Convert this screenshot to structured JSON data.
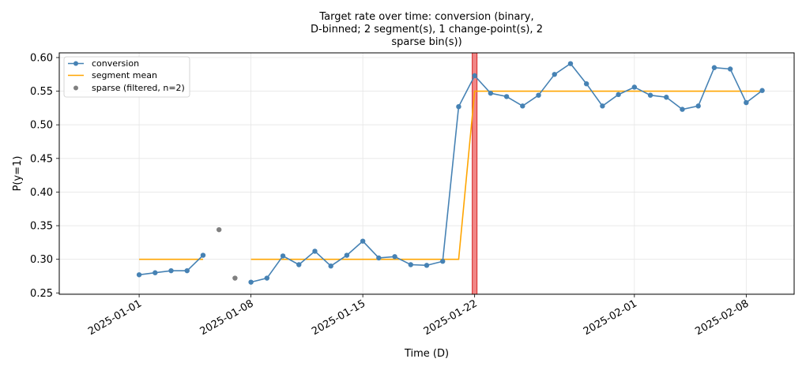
{
  "chart_data": {
    "type": "line",
    "title_lines": [
      "Target rate over time: conversion (binary,",
      "D-binned; 2 segment(s), 1 change-point(s), 2",
      "sparse bin(s))"
    ],
    "xlabel": "Time (D)",
    "ylabel": "P(y=1)",
    "ylim": [
      0.248,
      0.607
    ],
    "xlim": [
      "2024-12-27",
      "2025-02-11"
    ],
    "x_ticks": [
      "2025-01-01",
      "2025-01-08",
      "2025-01-15",
      "2025-01-22",
      "2025-02-01",
      "2025-02-08"
    ],
    "y_ticks": [
      "0.25",
      "0.30",
      "0.35",
      "0.40",
      "0.45",
      "0.50",
      "0.55",
      "0.60"
    ],
    "grid": true,
    "legend_position": "top-left",
    "legend": [
      "conversion",
      "segment mean",
      "sparse (filtered, n=2)"
    ],
    "colors": {
      "conversion": "#4682b4",
      "segment_mean": "#ffa500",
      "sparse": "#808080",
      "change_point": "#f08080"
    },
    "series": [
      {
        "name": "conversion",
        "segments": [
          [
            {
              "x": "2025-01-01",
              "y": 0.277
            },
            {
              "x": "2025-01-02",
              "y": 0.28
            },
            {
              "x": "2025-01-03",
              "y": 0.283
            },
            {
              "x": "2025-01-04",
              "y": 0.283
            },
            {
              "x": "2025-01-05",
              "y": 0.306
            }
          ],
          [
            {
              "x": "2025-01-08",
              "y": 0.266
            },
            {
              "x": "2025-01-09",
              "y": 0.272
            },
            {
              "x": "2025-01-10",
              "y": 0.305
            },
            {
              "x": "2025-01-11",
              "y": 0.292
            },
            {
              "x": "2025-01-12",
              "y": 0.312
            },
            {
              "x": "2025-01-13",
              "y": 0.29
            },
            {
              "x": "2025-01-14",
              "y": 0.306
            },
            {
              "x": "2025-01-15",
              "y": 0.327
            },
            {
              "x": "2025-01-16",
              "y": 0.302
            },
            {
              "x": "2025-01-17",
              "y": 0.304
            },
            {
              "x": "2025-01-18",
              "y": 0.292
            },
            {
              "x": "2025-01-19",
              "y": 0.291
            },
            {
              "x": "2025-01-20",
              "y": 0.297
            },
            {
              "x": "2025-01-21",
              "y": 0.527
            },
            {
              "x": "2025-01-22",
              "y": 0.573
            },
            {
              "x": "2025-01-23",
              "y": 0.547
            },
            {
              "x": "2025-01-24",
              "y": 0.542
            },
            {
              "x": "2025-01-25",
              "y": 0.528
            },
            {
              "x": "2025-01-26",
              "y": 0.544
            },
            {
              "x": "2025-01-27",
              "y": 0.575
            },
            {
              "x": "2025-01-28",
              "y": 0.591
            },
            {
              "x": "2025-01-29",
              "y": 0.561
            },
            {
              "x": "2025-01-30",
              "y": 0.528
            },
            {
              "x": "2025-01-31",
              "y": 0.545
            },
            {
              "x": "2025-02-01",
              "y": 0.556
            },
            {
              "x": "2025-02-02",
              "y": 0.544
            },
            {
              "x": "2025-02-03",
              "y": 0.541
            },
            {
              "x": "2025-02-04",
              "y": 0.523
            },
            {
              "x": "2025-02-05",
              "y": 0.528
            },
            {
              "x": "2025-02-06",
              "y": 0.585
            },
            {
              "x": "2025-02-07",
              "y": 0.583
            },
            {
              "x": "2025-02-08",
              "y": 0.533
            },
            {
              "x": "2025-02-09",
              "y": 0.551
            }
          ]
        ]
      },
      {
        "name": "segment mean",
        "segments": [
          [
            {
              "x": "2025-01-01",
              "y": 0.3
            },
            {
              "x": "2025-01-05",
              "y": 0.3
            }
          ],
          [
            {
              "x": "2025-01-08",
              "y": 0.3
            },
            {
              "x": "2025-01-21",
              "y": 0.3
            },
            {
              "x": "2025-01-22",
              "y": 0.55
            },
            {
              "x": "2025-02-09",
              "y": 0.55
            }
          ]
        ]
      },
      {
        "name": "sparse (filtered, n=2)",
        "points": [
          {
            "x": "2025-01-06",
            "y": 0.344
          },
          {
            "x": "2025-01-07",
            "y": 0.272
          }
        ]
      }
    ],
    "change_points": [
      "2025-01-22"
    ]
  }
}
